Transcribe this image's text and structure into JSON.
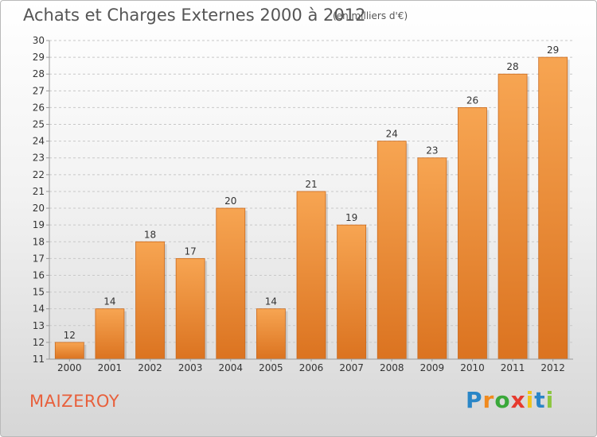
{
  "title": "Achats et Charges Externes 2000 à 2012",
  "subtitle": "(en milliers d'€)",
  "commune": "MAIZEROY",
  "logo": {
    "letters": [
      "P",
      "r",
      "o",
      "x",
      "i",
      "t",
      "i"
    ],
    "colors": [
      "#2a86c7",
      "#f08a1e",
      "#3aa83a",
      "#e63a2e",
      "#f0c419",
      "#2a86c7",
      "#8cc63f"
    ]
  },
  "colors": {
    "bar_top": "#f7a552",
    "bar_bottom": "#db7320",
    "bar_stroke": "#c96a1f",
    "grid": "#c8c8c8",
    "axis_text": "#333333"
  },
  "chart_data": {
    "type": "bar",
    "categories": [
      "2000",
      "2001",
      "2002",
      "2003",
      "2004",
      "2005",
      "2006",
      "2007",
      "2008",
      "2009",
      "2010",
      "2011",
      "2012"
    ],
    "values": [
      12,
      14,
      18,
      17,
      20,
      14,
      21,
      19,
      24,
      23,
      26,
      28,
      29
    ],
    "data_labels": [
      "12",
      "14",
      "18",
      "17",
      "20",
      "14",
      "21",
      "19",
      "24",
      "23",
      "26",
      "28",
      "29"
    ],
    "yticks": [
      "11",
      "12",
      "13",
      "14",
      "15",
      "16",
      "17",
      "18",
      "19",
      "20",
      "21",
      "22",
      "23",
      "24",
      "25",
      "26",
      "27",
      "28",
      "29",
      "30"
    ],
    "ylim": [
      11,
      30
    ],
    "grid": true,
    "grid_style": "dashed-horizontal"
  }
}
